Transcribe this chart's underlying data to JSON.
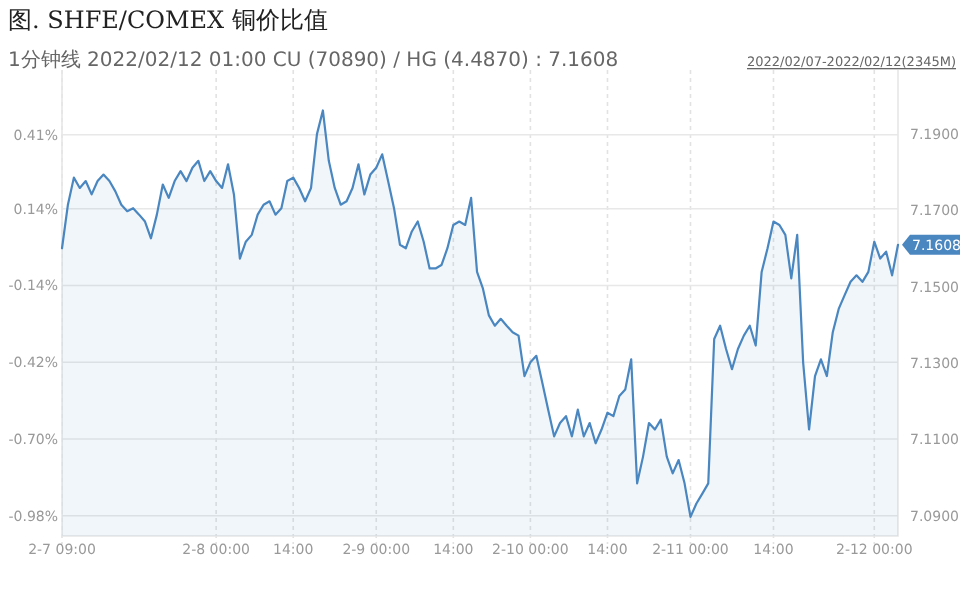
{
  "chart_data": {
    "type": "area",
    "title": "图. SHFE/COMEX 铜价比值",
    "subtitle": "1分钟线 2022/02/12 01:00 CU (70890) / HG (4.4870) : 7.1608",
    "annotations": [
      "2022/02/07-2022/02/12(2345M)",
      "7.1608"
    ],
    "categories": [
      "2-7 09:00",
      null,
      null,
      null,
      null,
      null,
      null,
      null,
      null,
      null,
      null,
      null,
      null,
      null,
      null,
      null,
      null,
      null,
      null,
      null,
      null,
      null,
      null,
      null,
      null,
      null,
      "2-8 00:00",
      null,
      null,
      null,
      null,
      null,
      null,
      null,
      null,
      null,
      null,
      null,
      null,
      "14:00",
      null,
      null,
      null,
      null,
      null,
      null,
      null,
      null,
      null,
      null,
      null,
      null,
      null,
      "2-9 00:00",
      null,
      null,
      null,
      null,
      null,
      null,
      null,
      null,
      null,
      null,
      null,
      null,
      "14:00",
      null,
      null,
      null,
      null,
      null,
      null,
      null,
      null,
      null,
      null,
      null,
      null,
      "2-10 00:00",
      null,
      null,
      null,
      null,
      null,
      null,
      null,
      null,
      null,
      null,
      null,
      null,
      "14:00",
      null,
      null,
      null,
      null,
      null,
      null,
      null,
      null,
      null,
      null,
      null,
      null,
      null,
      "2-11 00:00",
      null,
      null,
      null,
      null,
      null,
      null,
      null,
      null,
      null,
      null,
      null,
      null,
      null,
      "14:00",
      null,
      null,
      null,
      null,
      null,
      null,
      null,
      null,
      null,
      null,
      null,
      null,
      null,
      null,
      null,
      null,
      "2-12 00:00",
      null,
      null,
      null,
      null
    ],
    "ylim": [
      -1.054,
      0.646
    ],
    "yticks": [
      {
        "value": 0.41,
        "label": "0.41%"
      },
      {
        "value": 0.14,
        "label": "0.14%"
      },
      {
        "value": -0.14,
        "label": "-0.14%"
      },
      {
        "value": -0.42,
        "label": "-0.42%"
      },
      {
        "value": -0.7,
        "label": "-0.70%"
      },
      {
        "value": -0.98,
        "label": "-0.98%"
      }
    ],
    "y2lim": [
      7.0847,
      7.2068
    ],
    "y2ticks": [
      {
        "value": 7.19,
        "label": "7.1900"
      },
      {
        "value": 7.17,
        "label": "7.1700"
      },
      {
        "value": 7.15,
        "label": "7.1500"
      },
      {
        "value": 7.13,
        "label": "7.1300"
      },
      {
        "value": 7.11,
        "label": "7.1100"
      },
      {
        "value": 7.09,
        "label": "7.0900"
      }
    ],
    "grid": true,
    "marker": "none",
    "line_style": "solid",
    "series": [
      {
        "color": "#4a86c0",
        "axis": "y2",
        "values": [
          7.1601,
          7.1715,
          7.1786,
          7.1759,
          7.1777,
          7.1742,
          7.1777,
          7.1794,
          7.1777,
          7.175,
          7.1715,
          7.1698,
          7.1706,
          7.1689,
          7.1671,
          7.1627,
          7.1689,
          7.1768,
          7.1733,
          7.1777,
          7.1803,
          7.1777,
          7.1812,
          7.183,
          7.1777,
          7.1803,
          7.1777,
          7.1759,
          7.1821,
          7.1742,
          7.1574,
          7.1618,
          7.1636,
          7.1689,
          7.1715,
          7.1724,
          7.1689,
          7.1706,
          7.1777,
          7.1786,
          7.1759,
          7.1724,
          7.1759,
          7.19,
          7.1962,
          7.183,
          7.1759,
          7.1715,
          7.1724,
          7.1759,
          7.1821,
          7.1742,
          7.1794,
          7.1812,
          7.1847,
          7.1777,
          7.1706,
          7.161,
          7.1601,
          7.1645,
          7.1671,
          7.1618,
          7.1548,
          7.1548,
          7.1557,
          7.1601,
          7.1662,
          7.1671,
          7.1662,
          7.1733,
          7.1539,
          7.1495,
          7.1425,
          7.1398,
          7.1416,
          7.1398,
          7.1381,
          7.1372,
          7.1266,
          7.1302,
          7.1319,
          7.1249,
          7.1178,
          7.1108,
          7.1143,
          7.1161,
          7.1108,
          7.1178,
          7.1108,
          7.1143,
          7.109,
          7.1126,
          7.117,
          7.1161,
          7.1214,
          7.1231,
          7.131,
          7.0985,
          7.1055,
          7.1143,
          7.1126,
          7.1152,
          7.1055,
          7.1011,
          7.1046,
          7.0985,
          7.0897,
          7.0932,
          7.0958,
          7.0985,
          7.1363,
          7.1398,
          7.1337,
          7.1284,
          7.1337,
          7.1372,
          7.1398,
          7.1346,
          7.1539,
          7.1601,
          7.1671,
          7.1662,
          7.1636,
          7.1522,
          7.1636,
          7.1302,
          7.1126,
          7.1266,
          7.131,
          7.1266,
          7.1381,
          7.1442,
          7.1478,
          7.1513,
          7.153,
          7.1513,
          7.1539,
          7.1618,
          7.1574,
          7.1592,
          7.153,
          7.161
        ]
      }
    ]
  }
}
